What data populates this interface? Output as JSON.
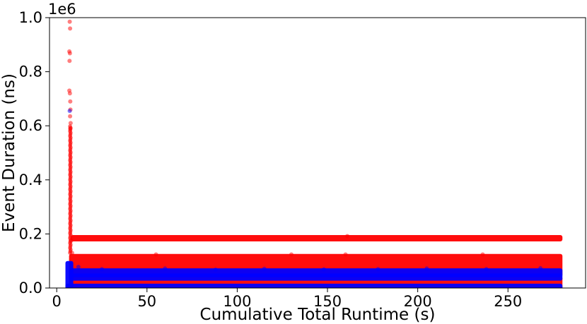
{
  "chart_data": {
    "type": "scatter",
    "xlabel": "Cumulative Total Runtime (s)",
    "ylabel": "Event Duration (ns)",
    "y_offset_label": "1e6",
    "xlim": [
      -4,
      293
    ],
    "ylim": [
      0,
      1000000
    ],
    "x_ticks": [
      0,
      50,
      100,
      150,
      200,
      250
    ],
    "x_tick_labels": [
      "0",
      "50",
      "100",
      "150",
      "200",
      "250"
    ],
    "y_ticks": [
      0,
      200000,
      400000,
      600000,
      800000,
      1000000
    ],
    "y_tick_labels": [
      "0.0",
      "0.2",
      "0.4",
      "0.6",
      "0.8",
      "1.0"
    ],
    "grid": false,
    "x_range_of_data": [
      6,
      279
    ],
    "series": [
      {
        "color": "#ff0000",
        "alpha": 0.5,
        "spike_points": [
          {
            "x": 7.2,
            "y": 985000
          },
          {
            "x": 7.4,
            "y": 960000
          },
          {
            "x": 7.0,
            "y": 875000
          },
          {
            "x": 7.3,
            "y": 868000
          },
          {
            "x": 7.1,
            "y": 840000
          },
          {
            "x": 7.0,
            "y": 730000
          },
          {
            "x": 7.3,
            "y": 720000
          },
          {
            "x": 7.5,
            "y": 690000
          },
          {
            "x": 7.6,
            "y": 660000
          },
          {
            "x": 7.4,
            "y": 635000
          },
          {
            "x": 7.7,
            "y": 610000
          },
          {
            "x": 7.5,
            "y": 590000
          }
        ],
        "bands": [
          {
            "y_min": 180000,
            "y_max": 188000,
            "x_min": 9,
            "x_max": 279
          },
          {
            "y_min": 50000,
            "y_max": 118000,
            "x_min": 8,
            "x_max": 279
          },
          {
            "y_min": 0,
            "y_max": 35000,
            "x_min": 8,
            "x_max": 279
          }
        ],
        "outliers": [
          {
            "x": 8.5,
            "y": 130000
          },
          {
            "x": 8.0,
            "y": 175000
          },
          {
            "x": 161,
            "y": 192000
          },
          {
            "x": 55,
            "y": 124000
          },
          {
            "x": 130,
            "y": 124000
          },
          {
            "x": 160,
            "y": 124000
          },
          {
            "x": 236,
            "y": 124000
          }
        ]
      },
      {
        "color": "#0000ff",
        "alpha": 0.5,
        "spike_points": [
          {
            "x": 7.2,
            "y": 655000
          }
        ],
        "bands": [
          {
            "y_min": 0,
            "y_max": 8000,
            "x_min": 6,
            "x_max": 279
          },
          {
            "y_min": 35000,
            "y_max": 46000,
            "x_min": 8,
            "x_max": 279
          },
          {
            "y_min": 48000,
            "y_max": 65000,
            "x_min": 8,
            "x_max": 279
          },
          {
            "y_min": 0,
            "y_max": 92000,
            "x_min": 6,
            "x_max": 8
          }
        ],
        "outliers": [
          {
            "x": 12,
            "y": 78000
          },
          {
            "x": 25,
            "y": 70000
          },
          {
            "x": 60,
            "y": 72000
          },
          {
            "x": 88,
            "y": 68000
          },
          {
            "x": 115,
            "y": 71000
          },
          {
            "x": 148,
            "y": 69000
          },
          {
            "x": 178,
            "y": 70000
          },
          {
            "x": 205,
            "y": 72000
          },
          {
            "x": 238,
            "y": 70000
          },
          {
            "x": 268,
            "y": 73000
          }
        ]
      }
    ]
  }
}
